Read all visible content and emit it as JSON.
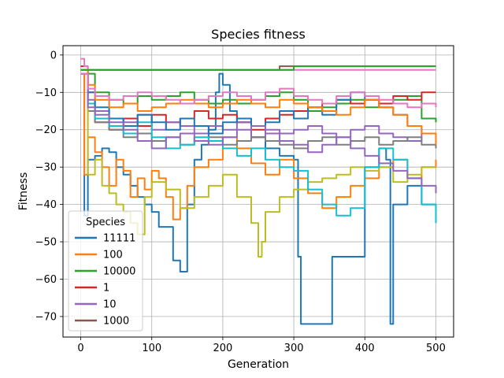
{
  "chart_data": {
    "type": "line",
    "title": "Species fitness",
    "xlabel": "Generation",
    "ylabel": "Fitness",
    "xlim": [
      -25,
      525
    ],
    "ylim": [
      -75.5,
      2.5
    ],
    "xticks": [
      0,
      100,
      200,
      300,
      400,
      500
    ],
    "yticks": [
      0,
      -10,
      -20,
      -30,
      -40,
      -50,
      -60,
      -70
    ],
    "grid": true,
    "legend": {
      "title": "Species",
      "position": "lower-left"
    },
    "series": [
      {
        "name": "11111",
        "color": "#1f77b4",
        "x": [
          0,
          5,
          10,
          20,
          30,
          40,
          50,
          60,
          70,
          80,
          90,
          100,
          110,
          120,
          130,
          140,
          150,
          160,
          170,
          180,
          190,
          195,
          200,
          210,
          220,
          240,
          260,
          280,
          300,
          306,
          310,
          330,
          350,
          354,
          360,
          380,
          400,
          420,
          430,
          436,
          440,
          460,
          480,
          500
        ],
        "y": [
          -5,
          -43,
          -28,
          -27,
          -25,
          -26,
          -30,
          -32,
          -35,
          -38,
          -40,
          -42,
          -46,
          -46,
          -55,
          -58,
          -40,
          -28,
          -24,
          -20,
          -10,
          -5,
          -8,
          -15,
          -18,
          -22,
          -25,
          -27,
          -28,
          -54,
          -72,
          -72,
          -72,
          -54,
          -54,
          -54,
          -30,
          -25,
          -28,
          -72,
          -40,
          -35,
          -40,
          -42
        ]
      },
      {
        "name": "100",
        "color": "#ff7f0e",
        "x": [
          0,
          5,
          10,
          20,
          30,
          40,
          50,
          60,
          70,
          80,
          90,
          100,
          110,
          120,
          130,
          140,
          150,
          160,
          180,
          200,
          220,
          240,
          260,
          280,
          300,
          320,
          340,
          360,
          380,
          400,
          420,
          440,
          460,
          480,
          500
        ],
        "y": [
          -5,
          -32,
          -22,
          -26,
          -30,
          -35,
          -28,
          -31,
          -38,
          -33,
          -36,
          -31,
          -33,
          -38,
          -44,
          -41,
          -35,
          -30,
          -28,
          -22,
          -25,
          -29,
          -32,
          -28,
          -33,
          -37,
          -41,
          -38,
          -35,
          -33,
          -30,
          -28,
          -33,
          -30,
          -28
        ]
      },
      {
        "name": "10000",
        "color": "#2ca02c",
        "x": [
          0,
          10,
          20,
          40,
          60,
          80,
          100,
          120,
          140,
          160,
          180,
          200,
          220,
          240,
          260,
          280,
          300,
          320,
          340,
          360,
          380,
          400,
          420,
          440,
          460,
          480,
          500
        ],
        "y": [
          -4,
          -5,
          -10,
          -12,
          -13,
          -11,
          -12,
          -11,
          -10,
          -12,
          -13,
          -12,
          -13,
          -12,
          -11,
          -10,
          -12,
          -15,
          -14,
          -13,
          -12,
          -14,
          -13,
          -12,
          -11,
          -17,
          -18
        ]
      },
      {
        "name": "1",
        "color": "#d62728",
        "x": [
          0,
          10,
          20,
          40,
          60,
          80,
          100,
          120,
          140,
          160,
          180,
          200,
          220,
          240,
          260,
          280,
          300,
          320,
          340,
          360,
          380,
          400,
          420,
          440,
          460,
          480,
          500
        ],
        "y": [
          -3,
          -10,
          -18,
          -20,
          -17,
          -19,
          -16,
          -18,
          -17,
          -15,
          -17,
          -16,
          -18,
          -20,
          -17,
          -16,
          -15,
          -14,
          -13,
          -12,
          -13,
          -12,
          -13,
          -11,
          -12,
          -10,
          -10
        ]
      },
      {
        "name": "10",
        "color": "#9467bd",
        "x": [
          0,
          10,
          20,
          40,
          60,
          80,
          100,
          120,
          140,
          160,
          180,
          200,
          220,
          240,
          260,
          280,
          300,
          320,
          340,
          360,
          380,
          400,
          420,
          440,
          460,
          480,
          500
        ],
        "y": [
          -4,
          -12,
          -15,
          -17,
          -18,
          -16,
          -20,
          -18,
          -19,
          -21,
          -19,
          -20,
          -18,
          -22,
          -20,
          -21,
          -20,
          -19,
          -21,
          -22,
          -20,
          -19,
          -21,
          -22,
          -23,
          -21,
          -22
        ]
      },
      {
        "name": "1000",
        "color": "#8c564b",
        "x": [
          0,
          10,
          20,
          40,
          60,
          80,
          100,
          120,
          140,
          160,
          180,
          200,
          220,
          240,
          260,
          280,
          300,
          320,
          340,
          360,
          380,
          400,
          420,
          440,
          460,
          480,
          500
        ],
        "y": [
          -4,
          -4,
          -4,
          -4,
          -4,
          -4,
          -4,
          -4,
          -4,
          -4,
          -4,
          -4,
          -4,
          -4,
          -4,
          -3,
          -3,
          -3,
          -3,
          -3,
          -3,
          -3,
          -3,
          -3,
          -3,
          -3,
          -3
        ]
      },
      {
        "color": "#e377c2",
        "x": [
          0,
          5,
          10,
          20,
          40,
          60,
          80,
          100,
          150,
          200,
          250,
          300,
          350,
          400,
          450,
          500
        ],
        "y": [
          -1,
          -3,
          -4,
          -4,
          -4,
          -4,
          -4,
          -4,
          -4,
          -4,
          -4,
          -4,
          -4,
          -4,
          -4,
          -4
        ]
      },
      {
        "color": "#7f7f7f",
        "x": [
          0,
          10,
          20,
          40,
          60,
          80,
          100,
          120,
          140,
          160,
          180,
          200,
          220,
          240,
          260,
          280,
          300,
          320,
          340,
          360,
          380,
          400,
          420,
          440,
          460,
          480,
          500
        ],
        "y": [
          -5,
          -15,
          -18,
          -20,
          -22,
          -21,
          -23,
          -22,
          -24,
          -23,
          -22,
          -24,
          -23,
          -22,
          -23,
          -24,
          -25,
          -23,
          -22,
          -24,
          -23,
          -22,
          -24,
          -23,
          -22,
          -24,
          -25
        ]
      },
      {
        "color": "#bcbd22",
        "x": [
          0,
          10,
          20,
          30,
          40,
          50,
          60,
          70,
          80,
          90,
          100,
          120,
          140,
          160,
          180,
          200,
          220,
          240,
          250,
          255,
          260,
          280,
          300,
          320,
          340,
          360,
          380,
          400,
          420,
          440,
          460,
          480,
          500
        ],
        "y": [
          -5,
          -32,
          -28,
          -35,
          -37,
          -40,
          -42,
          -45,
          -48,
          -38,
          -34,
          -36,
          -41,
          -38,
          -35,
          -32,
          -38,
          -45,
          -54,
          -50,
          -42,
          -38,
          -36,
          -34,
          -33,
          -32,
          -30,
          -31,
          -30,
          -34,
          -32,
          -30,
          -30
        ]
      },
      {
        "color": "#17becf",
        "x": [
          0,
          10,
          20,
          40,
          60,
          80,
          100,
          120,
          140,
          160,
          180,
          200,
          220,
          240,
          260,
          280,
          300,
          320,
          340,
          360,
          380,
          400,
          420,
          440,
          460,
          480,
          500
        ],
        "y": [
          -4,
          -13,
          -17,
          -19,
          -21,
          -18,
          -22,
          -25,
          -24,
          -22,
          -23,
          -25,
          -27,
          -25,
          -28,
          -30,
          -31,
          -36,
          -40,
          -43,
          -41,
          -30,
          -25,
          -28,
          -33,
          -40,
          -45
        ]
      },
      {
        "color": "#1f77b4",
        "x": [
          0,
          10,
          20,
          40,
          60,
          80,
          100,
          120,
          140,
          160,
          180,
          200,
          220,
          240,
          260,
          280,
          300,
          320,
          340,
          360,
          380,
          400,
          420,
          440,
          460,
          480,
          500
        ],
        "y": [
          -5,
          -10,
          -14,
          -17,
          -19,
          -16,
          -18,
          -20,
          -17,
          -19,
          -21,
          -18,
          -17,
          -19,
          -18,
          -15,
          -17,
          -14,
          -16,
          -12,
          -10,
          -12,
          -14,
          -16,
          -19,
          -21,
          -23
        ]
      },
      {
        "color": "#ff7f0e",
        "x": [
          0,
          10,
          20,
          40,
          60,
          80,
          100,
          120,
          140,
          160,
          180,
          200,
          220,
          240,
          260,
          280,
          300,
          320,
          340,
          360,
          380,
          400,
          420,
          440,
          460,
          480,
          500
        ],
        "y": [
          -4,
          -8,
          -12,
          -14,
          -13,
          -15,
          -14,
          -13,
          -12,
          -13,
          -14,
          -13,
          -12,
          -13,
          -14,
          -12,
          -13,
          -14,
          -15,
          -16,
          -14,
          -12,
          -14,
          -16,
          -19,
          -21,
          -24
        ]
      },
      {
        "color": "#2ca02c",
        "x": [
          0,
          20,
          50,
          100,
          150,
          200,
          250,
          300,
          350,
          400,
          450,
          500
        ],
        "y": [
          -4,
          -4,
          -4,
          -4,
          -4,
          -4,
          -4,
          -3,
          -3,
          -3,
          -3,
          -3
        ]
      },
      {
        "color": "#9467bd",
        "x": [
          0,
          10,
          20,
          40,
          60,
          80,
          100,
          120,
          140,
          160,
          180,
          200,
          220,
          240,
          260,
          280,
          300,
          320,
          340,
          360,
          380,
          400,
          420,
          440,
          460,
          480,
          500
        ],
        "y": [
          -5,
          -14,
          -16,
          -18,
          -20,
          -23,
          -25,
          -22,
          -21,
          -23,
          -24,
          -22,
          -20,
          -19,
          -21,
          -23,
          -24,
          -26,
          -24,
          -22,
          -25,
          -27,
          -29,
          -31,
          -33,
          -35,
          -37
        ]
      },
      {
        "color": "#e377c2",
        "x": [
          0,
          10,
          20,
          40,
          60,
          80,
          100,
          120,
          140,
          160,
          180,
          200,
          220,
          240,
          260,
          280,
          300,
          320,
          340,
          360,
          380,
          400,
          420,
          440,
          460,
          480,
          500
        ],
        "y": [
          -5,
          -9,
          -11,
          -12,
          -11,
          -10,
          -11,
          -12,
          -13,
          -12,
          -11,
          -10,
          -11,
          -12,
          -10,
          -9,
          -11,
          -12,
          -13,
          -11,
          -10,
          -11,
          -12,
          -13,
          -14,
          -13,
          -14
        ]
      }
    ]
  }
}
